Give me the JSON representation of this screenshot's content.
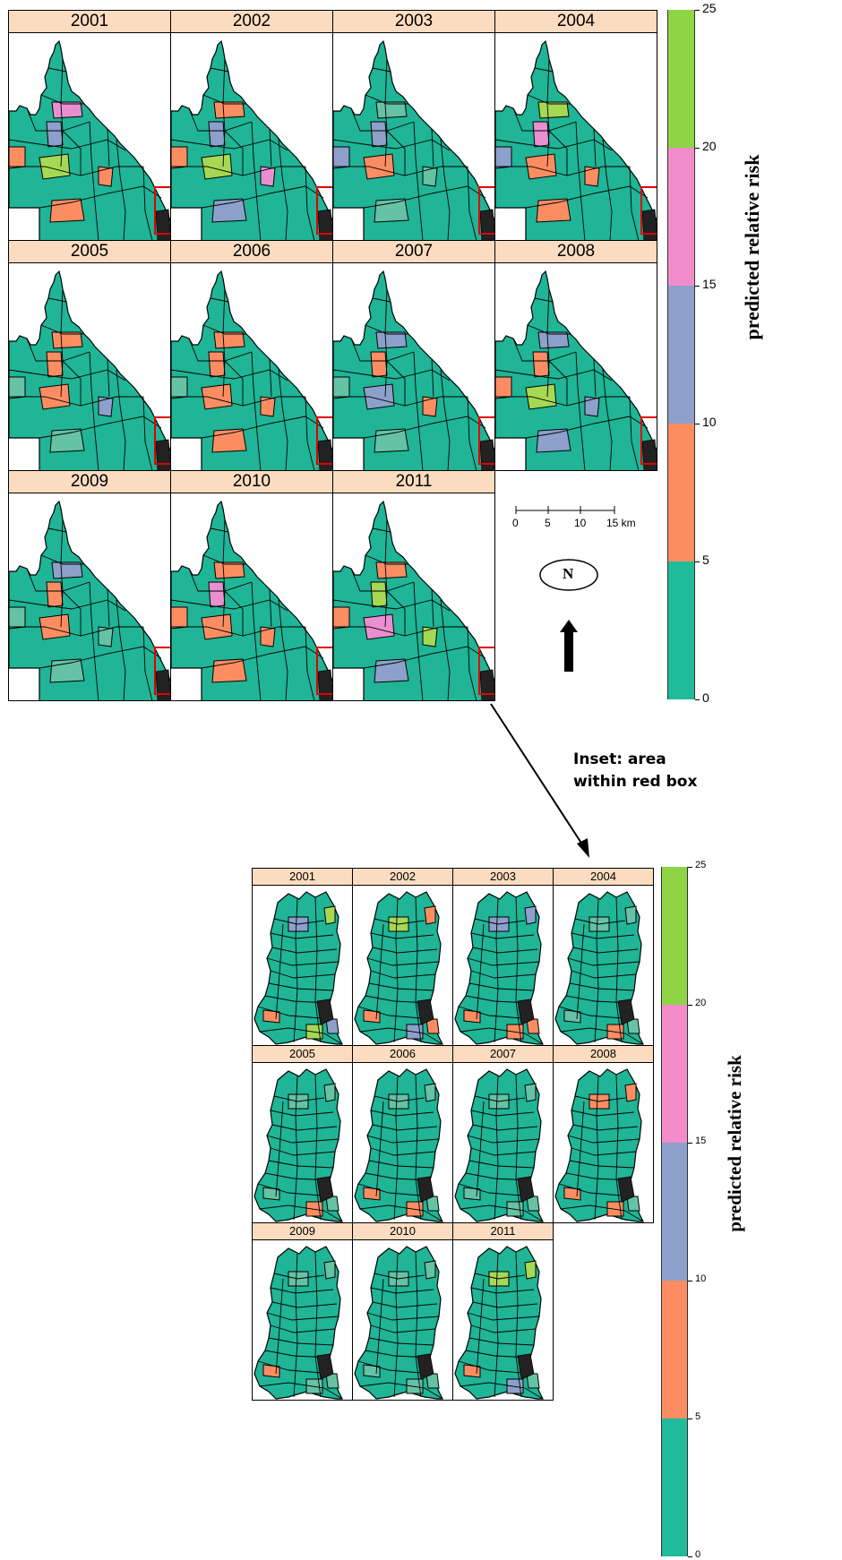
{
  "top_panels": [
    {
      "year": "2001",
      "regions": {
        "r1": "#e98fd0",
        "r2": "#8da0cb",
        "r3": "#a6d854",
        "r4": "#fc8d62",
        "r5": "#fc8d62",
        "r6": "#fc8d62"
      }
    },
    {
      "year": "2002",
      "regions": {
        "r1": "#fc8d62",
        "r2": "#8da0cb",
        "r3": "#a6d854",
        "r4": "#e98fd0",
        "r5": "#8da0cb",
        "r6": "#fc8d62"
      }
    },
    {
      "year": "2003",
      "regions": {
        "r1": "#66c2a5",
        "r2": "#8da0cb",
        "r3": "#fc8d62",
        "r4": "#66c2a5",
        "r5": "#66c2a5",
        "r6": "#8da0cb"
      }
    },
    {
      "year": "2004",
      "regions": {
        "r1": "#a6d854",
        "r2": "#e98fd0",
        "r3": "#fc8d62",
        "r4": "#fc8d62",
        "r5": "#fc8d62",
        "r6": "#8da0cb"
      }
    },
    {
      "year": "2005",
      "regions": {
        "r1": "#fc8d62",
        "r2": "#fc8d62",
        "r3": "#fc8d62",
        "r4": "#8da0cb",
        "r5": "#66c2a5",
        "r6": "#66c2a5"
      }
    },
    {
      "year": "2006",
      "regions": {
        "r1": "#fc8d62",
        "r2": "#fc8d62",
        "r3": "#fc8d62",
        "r4": "#fc8d62",
        "r5": "#fc8d62",
        "r6": "#66c2a5"
      }
    },
    {
      "year": "2007",
      "regions": {
        "r1": "#8da0cb",
        "r2": "#fc8d62",
        "r3": "#8da0cb",
        "r4": "#fc8d62",
        "r5": "#66c2a5",
        "r6": "#66c2a5"
      }
    },
    {
      "year": "2008",
      "regions": {
        "r1": "#8da0cb",
        "r2": "#fc8d62",
        "r3": "#a6d854",
        "r4": "#8da0cb",
        "r5": "#8da0cb",
        "r6": "#fc8d62"
      }
    },
    {
      "year": "2009",
      "regions": {
        "r1": "#8da0cb",
        "r2": "#fc8d62",
        "r3": "#fc8d62",
        "r4": "#66c2a5",
        "r5": "#66c2a5",
        "r6": "#66c2a5"
      }
    },
    {
      "year": "2010",
      "regions": {
        "r1": "#fc8d62",
        "r2": "#e98fd0",
        "r3": "#fc8d62",
        "r4": "#fc8d62",
        "r5": "#fc8d62",
        "r6": "#fc8d62"
      }
    },
    {
      "year": "2011",
      "regions": {
        "r1": "#fc8d62",
        "r2": "#a6d854",
        "r3": "#e98fd0",
        "r4": "#a6d854",
        "r5": "#8da0cb",
        "r6": "#fc8d62"
      }
    }
  ],
  "inset_panels": [
    {
      "year": "2001",
      "regions": {
        "r1": "#8da0cb",
        "r2": "#a6d854",
        "r3": "#fc8d62",
        "r4": "#a6d854",
        "r5": "#8da0cb"
      }
    },
    {
      "year": "2002",
      "regions": {
        "r1": "#a6d854",
        "r2": "#fc8d62",
        "r3": "#fc8d62",
        "r4": "#8da0cb",
        "r5": "#fc8d62"
      }
    },
    {
      "year": "2003",
      "regions": {
        "r1": "#8da0cb",
        "r2": "#8da0cb",
        "r3": "#fc8d62",
        "r4": "#fc8d62",
        "r5": "#fc8d62"
      }
    },
    {
      "year": "2004",
      "regions": {
        "r1": "#66c2a5",
        "r2": "#66c2a5",
        "r3": "#66c2a5",
        "r4": "#fc8d62",
        "r5": "#66c2a5"
      }
    },
    {
      "year": "2005",
      "regions": {
        "r1": "#66c2a5",
        "r2": "#66c2a5",
        "r3": "#66c2a5",
        "r4": "#fc8d62",
        "r5": "#66c2a5"
      }
    },
    {
      "year": "2006",
      "regions": {
        "r1": "#66c2a5",
        "r2": "#66c2a5",
        "r3": "#fc8d62",
        "r4": "#fc8d62",
        "r5": "#66c2a5"
      }
    },
    {
      "year": "2007",
      "regions": {
        "r1": "#66c2a5",
        "r2": "#66c2a5",
        "r3": "#66c2a5",
        "r4": "#66c2a5",
        "r5": "#66c2a5"
      }
    },
    {
      "year": "2008",
      "regions": {
        "r1": "#fc8d62",
        "r2": "#fc8d62",
        "r3": "#fc8d62",
        "r4": "#fc8d62",
        "r5": "#66c2a5"
      }
    },
    {
      "year": "2009",
      "regions": {
        "r1": "#66c2a5",
        "r2": "#66c2a5",
        "r3": "#fc8d62",
        "r4": "#66c2a5",
        "r5": "#66c2a5"
      }
    },
    {
      "year": "2010",
      "regions": {
        "r1": "#66c2a5",
        "r2": "#66c2a5",
        "r3": "#66c2a5",
        "r4": "#66c2a5",
        "r5": "#66c2a5"
      }
    },
    {
      "year": "2011",
      "regions": {
        "r1": "#a6d854",
        "r2": "#a6d854",
        "r3": "#fc8d62",
        "r4": "#8da0cb",
        "r5": "#66c2a5"
      }
    }
  ],
  "legend": {
    "title": "predicted relative risk",
    "ticks": [
      "0",
      "5",
      "10",
      "15",
      "20",
      "25"
    ],
    "bands": [
      {
        "from": 0,
        "to": 5,
        "color": "#1fbb9b"
      },
      {
        "from": 5,
        "to": 10,
        "color": "#fc8d62"
      },
      {
        "from": 10,
        "to": 15,
        "color": "#8da0cb"
      },
      {
        "from": 15,
        "to": 20,
        "color": "#f38ccb"
      },
      {
        "from": 20,
        "to": 25,
        "color": "#8fd444"
      }
    ]
  },
  "scale_bar": {
    "labels": [
      "0",
      "5",
      "10",
      "15 km"
    ]
  },
  "north_arrow": {
    "label": "N"
  },
  "inset_label": [
    "Inset: area",
    "within red box"
  ],
  "colors": {
    "base": "#1fb596",
    "strip": "#fcdcc0",
    "redbox": "#e00000"
  }
}
